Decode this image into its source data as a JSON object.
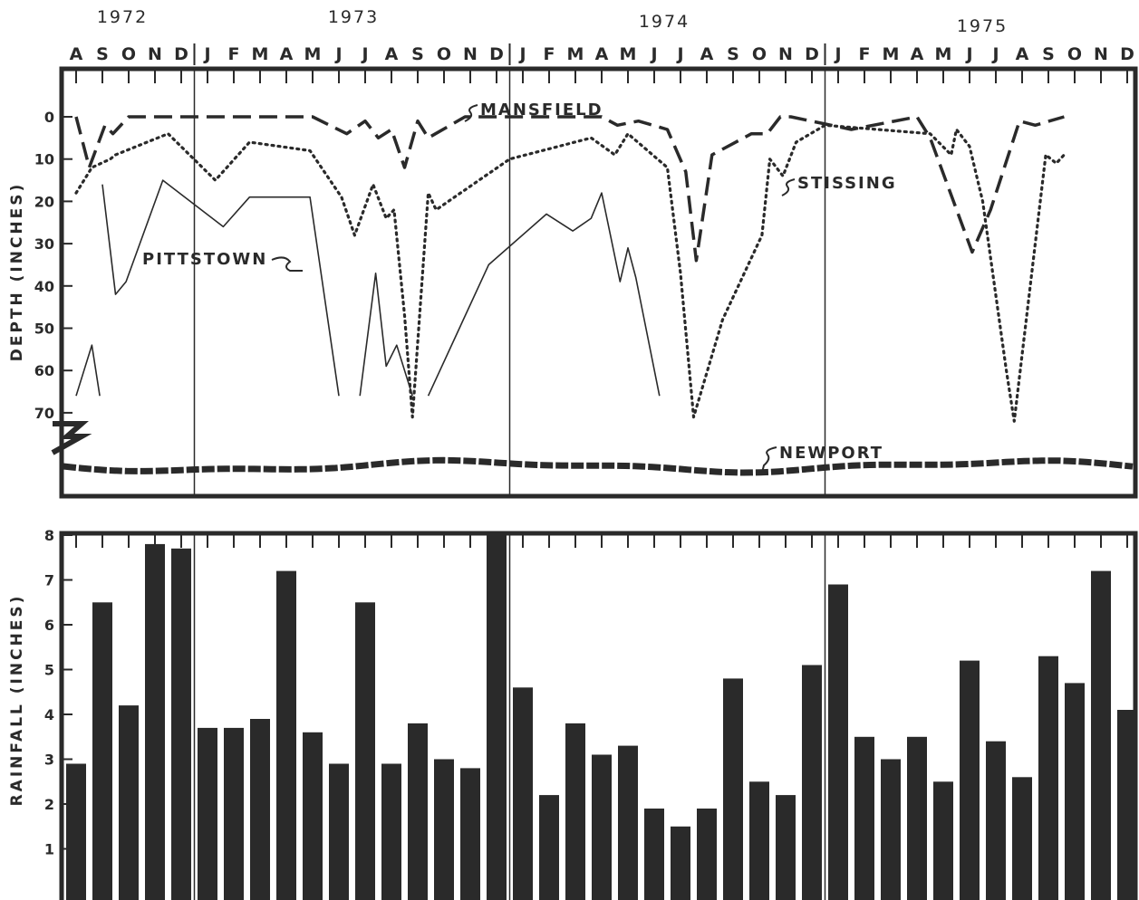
{
  "chart_data": [
    {
      "type": "line",
      "xlabel": "",
      "ylabel": "DEPTH (INCHES)",
      "year_labels": [
        "1972",
        "1973",
        "1974",
        "1975"
      ],
      "month_labels": [
        "A",
        "S",
        "O",
        "N",
        "D",
        "J",
        "F",
        "M",
        "A",
        "M",
        "J",
        "J",
        "A",
        "S",
        "O",
        "N",
        "D",
        "J",
        "F",
        "M",
        "A",
        "M",
        "J",
        "J",
        "A",
        "S",
        "O",
        "N",
        "D",
        "J",
        "F",
        "M",
        "A",
        "M",
        "J",
        "J",
        "A",
        "S",
        "O",
        "N",
        "D"
      ],
      "x_unit": "months since Aug 1972 (0 = A 1972)",
      "ylim": [
        0,
        70
      ],
      "yticks": [
        0,
        10,
        20,
        30,
        40,
        50,
        60,
        70
      ],
      "y_reversed": true,
      "series": [
        {
          "name": "MANSFIELD",
          "style": "dashed",
          "points": [
            [
              0,
              0
            ],
            [
              0.5,
              12
            ],
            [
              1.1,
              2
            ],
            [
              1.4,
              4
            ],
            [
              2,
              0
            ],
            [
              9,
              0
            ],
            [
              10.3,
              4
            ],
            [
              11,
              1
            ],
            [
              11.5,
              5
            ],
            [
              12,
              3
            ],
            [
              12.5,
              12
            ],
            [
              13,
              1
            ],
            [
              13.4,
              5
            ],
            [
              14.8,
              0
            ],
            [
              20,
              0
            ],
            [
              20.6,
              2
            ],
            [
              21.4,
              1
            ],
            [
              22.5,
              3
            ],
            [
              23.2,
              13
            ],
            [
              23.6,
              34
            ],
            [
              24.2,
              9
            ],
            [
              25.7,
              4
            ],
            [
              26.3,
              4
            ],
            [
              26.8,
              0
            ],
            [
              27.2,
              0
            ],
            [
              29.5,
              3
            ],
            [
              32,
              0
            ],
            [
              32.5,
              5
            ],
            [
              34.1,
              32
            ],
            [
              34.8,
              22
            ],
            [
              35.9,
              1
            ],
            [
              36.5,
              2
            ],
            [
              37.6,
              0
            ]
          ]
        },
        {
          "name": "STISSING",
          "style": "dotted",
          "points": [
            [
              0,
              18
            ],
            [
              0.6,
              12
            ],
            [
              1.3,
              10
            ],
            [
              1.5,
              9
            ],
            [
              3.5,
              4
            ],
            [
              5.3,
              15
            ],
            [
              6.6,
              6
            ],
            [
              8.9,
              8
            ],
            [
              10.1,
              19
            ],
            [
              10.6,
              28
            ],
            [
              11.3,
              16
            ],
            [
              11.8,
              24
            ],
            [
              12.1,
              22
            ],
            [
              12.5,
              47
            ],
            [
              12.8,
              71
            ],
            [
              13.4,
              18
            ],
            [
              13.7,
              22
            ],
            [
              16.5,
              10
            ],
            [
              19.6,
              5
            ],
            [
              20.5,
              9
            ],
            [
              21,
              4
            ],
            [
              22.5,
              12
            ],
            [
              23,
              37
            ],
            [
              23.5,
              71
            ],
            [
              24.6,
              48
            ],
            [
              26.1,
              28
            ],
            [
              26.4,
              10
            ],
            [
              26.9,
              14
            ],
            [
              27.4,
              6
            ],
            [
              28.5,
              2
            ],
            [
              32.5,
              4
            ],
            [
              33.3,
              9
            ],
            [
              33.5,
              3
            ],
            [
              34,
              7
            ],
            [
              34.5,
              20
            ],
            [
              35.4,
              60
            ],
            [
              35.7,
              72
            ],
            [
              36.9,
              9
            ],
            [
              37.3,
              11
            ],
            [
              37.6,
              9
            ]
          ]
        },
        {
          "name": "PITTSTOWN",
          "style": "solid",
          "segments": [
            [
              [
                0,
                66
              ],
              [
                0.6,
                54
              ],
              [
                0.9,
                66
              ]
            ],
            [
              [
                1,
                16
              ],
              [
                1.5,
                42
              ],
              [
                1.9,
                39
              ],
              [
                3.3,
                15
              ],
              [
                5.6,
                26
              ],
              [
                6.6,
                19
              ],
              [
                8.9,
                19
              ],
              [
                10,
                66
              ]
            ],
            [
              [
                10.8,
                66
              ],
              [
                11.4,
                37
              ],
              [
                11.8,
                59
              ],
              [
                12.2,
                54
              ],
              [
                12.8,
                66
              ]
            ],
            [
              [
                13.4,
                66
              ],
              [
                15.7,
                35
              ],
              [
                17.9,
                23
              ],
              [
                18.9,
                27
              ],
              [
                19.6,
                24
              ],
              [
                20,
                18
              ],
              [
                20.7,
                39
              ],
              [
                21,
                31
              ],
              [
                21.3,
                38
              ],
              [
                22.2,
                66
              ]
            ]
          ]
        },
        {
          "name": "NEWPORT",
          "style": "hatched-band",
          "note": "plotted below the broken axis, off scale"
        }
      ]
    },
    {
      "type": "bar",
      "xlabel": "",
      "ylabel": "RAINFALL (INCHES)",
      "ylim": [
        0,
        8
      ],
      "yticks": [
        1,
        2,
        3,
        4,
        5,
        6,
        7,
        8
      ],
      "categories": [
        "A",
        "S",
        "O",
        "N",
        "D",
        "J",
        "F",
        "M",
        "A",
        "M",
        "J",
        "J",
        "A",
        "S",
        "O",
        "N",
        "D",
        "J",
        "F",
        "M",
        "A",
        "M",
        "J",
        "J",
        "A",
        "S",
        "O",
        "N",
        "D",
        "J",
        "F",
        "M",
        "A",
        "M",
        "J",
        "J",
        "A",
        "S",
        "O",
        "N",
        "D"
      ],
      "values": [
        2.9,
        6.5,
        4.2,
        7.8,
        7.7,
        3.7,
        3.7,
        3.9,
        7.2,
        3.6,
        2.9,
        6.5,
        2.9,
        3.8,
        3.0,
        2.8,
        8.0,
        4.6,
        2.2,
        3.8,
        3.1,
        3.3,
        1.9,
        1.5,
        1.9,
        4.8,
        2.5,
        2.2,
        5.1,
        6.9,
        3.5,
        3.0,
        3.5,
        2.5,
        5.2,
        3.4,
        2.6,
        5.3,
        4.7,
        7.2,
        4.1
      ]
    }
  ],
  "colors": {
    "ink": "#2a2a2a",
    "paper": "#ffffff"
  }
}
